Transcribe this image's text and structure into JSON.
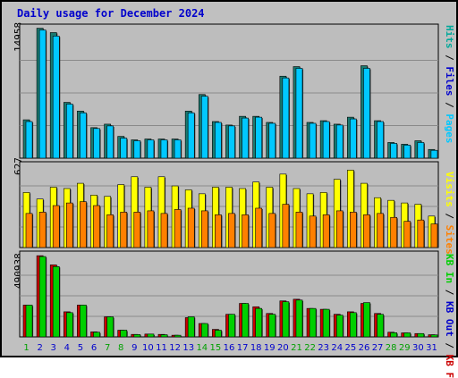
{
  "title": "Daily usage for December 2024",
  "colors": {
    "background": "#c0c0c0",
    "panel": "#bdbdbd",
    "pages": "#00c8ff",
    "hits": "#00a89a",
    "visits": "#ffff00",
    "sites": "#ff8000",
    "kb_in": "#00d000",
    "kb_out": "#cc0000",
    "title": "#0000cc",
    "weekend_day": "#00a000",
    "weekday_day": "#0000cc"
  },
  "right_labels": {
    "top": [
      {
        "text": "Hits",
        "color": "#00a89a"
      },
      {
        "text": " / ",
        "color": "#000000"
      },
      {
        "text": "Files",
        "color": "#0000cc"
      },
      {
        "text": " / ",
        "color": "#000000"
      },
      {
        "text": "Pages",
        "color": "#00c8ff"
      }
    ],
    "middle": [
      {
        "text": "Visits",
        "color": "#ffff00"
      },
      {
        "text": " / ",
        "color": "#000000"
      },
      {
        "text": "Sites",
        "color": "#ff8000"
      }
    ],
    "bottom": [
      {
        "text": "KB In",
        "color": "#00d000"
      },
      {
        "text": " / ",
        "color": "#000000"
      },
      {
        "text": "KB Out",
        "color": "#0000cc"
      },
      {
        "text": " / ",
        "color": "#000000"
      },
      {
        "text": "KB F",
        "color": "#cc0000"
      }
    ]
  },
  "chart_data": [
    {
      "type": "bar",
      "title": "Hits / Files / Pages",
      "y_max_label": "14958",
      "ylim": [
        0,
        14958
      ],
      "grid": true,
      "categories": [
        "1",
        "2",
        "3",
        "4",
        "5",
        "6",
        "7",
        "8",
        "9",
        "10",
        "11",
        "12",
        "13",
        "14",
        "15",
        "16",
        "17",
        "18",
        "19",
        "20",
        "21",
        "22",
        "23",
        "24",
        "25",
        "26",
        "27",
        "28",
        "29",
        "30",
        "31"
      ],
      "series": [
        {
          "name": "Hits",
          "values": [
            4400,
            14900,
            14400,
            6400,
            5400,
            3500,
            3900,
            2500,
            2100,
            2200,
            2200,
            2200,
            5400,
            7300,
            4200,
            3800,
            4800,
            4800,
            4100,
            9400,
            10500,
            4100,
            4300,
            3900,
            4700,
            10600,
            4300,
            1800,
            1600,
            2000,
            1000
          ]
        },
        {
          "name": "Files",
          "values": [
            4200,
            14700,
            14000,
            6200,
            5200,
            3400,
            3700,
            2300,
            2000,
            2100,
            2100,
            2100,
            5200,
            7100,
            4100,
            3700,
            4600,
            4700,
            4000,
            9200,
            10300,
            4000,
            4200,
            3800,
            4500,
            10300,
            4200,
            1700,
            1500,
            1800,
            900
          ]
        }
      ]
    },
    {
      "type": "bar",
      "title": "Visits / Sites",
      "y_max_label": "627",
      "ylim": [
        0,
        627
      ],
      "grid": true,
      "categories": [
        "1",
        "2",
        "3",
        "4",
        "5",
        "6",
        "7",
        "8",
        "9",
        "10",
        "11",
        "12",
        "13",
        "14",
        "15",
        "16",
        "17",
        "18",
        "19",
        "20",
        "21",
        "22",
        "23",
        "24",
        "25",
        "26",
        "27",
        "28",
        "29",
        "30",
        "31"
      ],
      "series": [
        {
          "name": "Visits",
          "values": [
            420,
            370,
            460,
            450,
            490,
            400,
            390,
            480,
            540,
            460,
            540,
            470,
            440,
            410,
            460,
            460,
            450,
            500,
            460,
            560,
            450,
            410,
            420,
            520,
            590,
            490,
            380,
            360,
            340,
            330,
            240
          ]
        },
        {
          "name": "Sites",
          "values": [
            260,
            270,
            320,
            340,
            350,
            320,
            250,
            270,
            270,
            280,
            260,
            290,
            300,
            280,
            250,
            260,
            250,
            300,
            260,
            330,
            270,
            240,
            250,
            280,
            270,
            250,
            260,
            230,
            200,
            210,
            180
          ]
        }
      ]
    },
    {
      "type": "bar",
      "title": "KB In / KB Out / KB F",
      "y_max_label": "490938",
      "ylim": [
        0,
        490938
      ],
      "grid": true,
      "categories": [
        "1",
        "2",
        "3",
        "4",
        "5",
        "6",
        "7",
        "8",
        "9",
        "10",
        "11",
        "12",
        "13",
        "14",
        "15",
        "16",
        "17",
        "18",
        "19",
        "20",
        "21",
        "22",
        "23",
        "24",
        "25",
        "26",
        "27",
        "28",
        "29",
        "30",
        "31"
      ],
      "series": [
        {
          "name": "KB F",
          "values": [
            190000,
            485000,
            430000,
            150000,
            190000,
            30000,
            120000,
            40000,
            15000,
            17000,
            15000,
            10000,
            115000,
            80000,
            45000,
            135000,
            200000,
            180000,
            140000,
            215000,
            225000,
            170000,
            165000,
            135000,
            150000,
            200000,
            140000,
            28000,
            24000,
            20000,
            13000
          ]
        },
        {
          "name": "KB In",
          "values": [
            190000,
            480000,
            420000,
            145000,
            190000,
            28000,
            120000,
            40000,
            14000,
            17000,
            13000,
            10000,
            120000,
            80000,
            40000,
            135000,
            200000,
            170000,
            135000,
            210000,
            220000,
            170000,
            165000,
            130000,
            145000,
            205000,
            135000,
            25000,
            24000,
            20000,
            12000
          ]
        }
      ]
    }
  ],
  "weekend_days": [
    1,
    7,
    8,
    14,
    15,
    21,
    22,
    28,
    29
  ]
}
